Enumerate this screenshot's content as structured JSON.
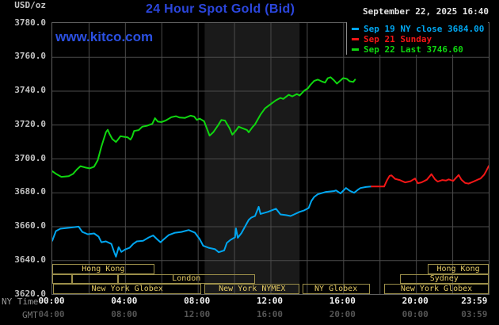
{
  "header": {
    "unit": "USD/oz",
    "title": "24 Hour Spot Gold (Bid)",
    "datetime": "September 22, 2025 16:40",
    "watermark": "www.kitco.com"
  },
  "colors": {
    "title_blue": "#2b46dd",
    "watermark_blue": "#2b50e2",
    "grid": "#4b4b4b",
    "frame": "#5f5f5f",
    "band": "#1a1a1a",
    "session_border": "#9c8f4a",
    "session_text": "#e3c963",
    "cyan_series": "#00a6f0",
    "red_series": "#f31616",
    "green_series": "#0fd60f"
  },
  "legend": {
    "entries": [
      {
        "label": "Sep 19 NY close 3684.00",
        "color": "#00a6f0"
      },
      {
        "label": "Sep 21 Sunday",
        "color": "#f31616"
      },
      {
        "label": "Sep 22 Last 3746.60",
        "color": "#0fd60f"
      }
    ]
  },
  "y_axis": {
    "labels": [
      "3780.0",
      "3760.0",
      "3740.0",
      "3720.0",
      "3700.0",
      "3680.0",
      "3660.0",
      "3640.0",
      "3620.0"
    ]
  },
  "x_axis": {
    "row1_label": "NY Time",
    "row2_label": "GMT",
    "row1_ticks": [
      {
        "h": 0,
        "t": "00:00"
      },
      {
        "h": 4,
        "t": "04:00"
      },
      {
        "h": 8,
        "t": "08:00"
      },
      {
        "h": 12,
        "t": "12:00"
      },
      {
        "h": 16,
        "t": "16:00"
      },
      {
        "h": 20,
        "t": "20:00"
      },
      {
        "h": 23.25,
        "t": "23:59"
      }
    ],
    "row2_ticks": [
      {
        "h": 0,
        "t": "04:00"
      },
      {
        "h": 4,
        "t": "08:00"
      },
      {
        "h": 8,
        "t": "12:00"
      },
      {
        "h": 12,
        "t": "16:00"
      },
      {
        "h": 16,
        "t": "20:00"
      },
      {
        "h": 20,
        "t": "00:00"
      },
      {
        "h": 23.25,
        "t": "03:59"
      }
    ]
  },
  "sessions": {
    "rows": [
      {
        "boxes": [
          {
            "start": 0,
            "end": 5.6,
            "label": "Hong Kong"
          },
          {
            "start": 20.65,
            "end": 24,
            "label": "Hong Kong"
          }
        ]
      },
      {
        "boxes": [
          {
            "start": 0,
            "end": 1.1,
            "label": ""
          },
          {
            "start": 1.1,
            "end": 3.6,
            "label": ""
          },
          {
            "start": 3.6,
            "end": 11.15,
            "label": "London"
          },
          {
            "start": 19.1,
            "end": 24,
            "label": "Sydney"
          }
        ]
      },
      {
        "boxes": [
          {
            "start": 0.05,
            "end": 8.2,
            "label": "New York Globex"
          },
          {
            "start": 8.38,
            "end": 13.6,
            "label": "New York NYMEX"
          },
          {
            "start": 13.75,
            "end": 17.45,
            "label": "NY Globex"
          },
          {
            "start": 18.25,
            "end": 24,
            "label": "New York Globex"
          }
        ]
      }
    ]
  },
  "chart_data": {
    "type": "line",
    "title": "24 Hour Spot Gold (Bid)",
    "x_unit": "NY time, hours",
    "x_range": [
      0,
      24
    ],
    "y_range": [
      3620,
      3780
    ],
    "y_step": 20,
    "x_gridline_step_hours": 2,
    "shaded_band_hours": {
      "start": 8.38,
      "end": 13.6
    },
    "series": [
      {
        "name": "Sep 19 NY close",
        "close_value": 3684.0,
        "color": "#00a6f0",
        "points": [
          [
            0,
            3651.5
          ],
          [
            0.2,
            3657.2
          ],
          [
            0.45,
            3658.6
          ],
          [
            0.9,
            3659.1
          ],
          [
            1.45,
            3659.8
          ],
          [
            1.65,
            3656.7
          ],
          [
            1.95,
            3655.3
          ],
          [
            2.3,
            3655.8
          ],
          [
            2.55,
            3653.9
          ],
          [
            2.7,
            3650.6
          ],
          [
            2.95,
            3651.1
          ],
          [
            3.25,
            3649.6
          ],
          [
            3.4,
            3644.9
          ],
          [
            3.5,
            3642.1
          ],
          [
            3.65,
            3647.7
          ],
          [
            3.8,
            3644.9
          ],
          [
            4,
            3646.3
          ],
          [
            4.25,
            3647.3
          ],
          [
            4.45,
            3649.6
          ],
          [
            4.65,
            3651.1
          ],
          [
            5,
            3651.5
          ],
          [
            5.3,
            3653.4
          ],
          [
            5.55,
            3654.6
          ],
          [
            5.75,
            3652.5
          ],
          [
            5.95,
            3650.6
          ],
          [
            6.15,
            3652.5
          ],
          [
            6.4,
            3654.8
          ],
          [
            6.75,
            3656.2
          ],
          [
            7.1,
            3656.7
          ],
          [
            7.5,
            3657.8
          ],
          [
            7.85,
            3656.2
          ],
          [
            8.1,
            3652.5
          ],
          [
            8.3,
            3648.5
          ],
          [
            8.6,
            3647.3
          ],
          [
            8.95,
            3646.5
          ],
          [
            9.15,
            3644.7
          ],
          [
            9.45,
            3645.8
          ],
          [
            9.6,
            3650.2
          ],
          [
            9.8,
            3652
          ],
          [
            10.05,
            3653.5
          ],
          [
            10.1,
            3658.8
          ],
          [
            10.2,
            3653.2
          ],
          [
            10.4,
            3656
          ],
          [
            10.8,
            3663.8
          ],
          [
            10.95,
            3665.2
          ],
          [
            11.15,
            3666.1
          ],
          [
            11.35,
            3671.5
          ],
          [
            11.45,
            3667.3
          ],
          [
            11.85,
            3668.5
          ],
          [
            12.3,
            3670.4
          ],
          [
            12.55,
            3667
          ],
          [
            12.85,
            3666.6
          ],
          [
            13.1,
            3666.1
          ],
          [
            13.3,
            3667
          ],
          [
            13.6,
            3668.5
          ],
          [
            13.85,
            3669.4
          ],
          [
            14.1,
            3670.8
          ],
          [
            14.25,
            3675
          ],
          [
            14.4,
            3677.3
          ],
          [
            14.6,
            3678.9
          ],
          [
            15.05,
            3680.3
          ],
          [
            15.5,
            3680.8
          ],
          [
            15.6,
            3681.2
          ],
          [
            15.85,
            3679.4
          ],
          [
            16.15,
            3682.6
          ],
          [
            16.35,
            3681
          ],
          [
            16.6,
            3679.8
          ],
          [
            16.8,
            3681.5
          ],
          [
            16.95,
            3682.6
          ],
          [
            17.25,
            3683.2
          ],
          [
            17.55,
            3683.5
          ]
        ]
      },
      {
        "name": "Sep 21 Sunday",
        "color": "#f31616",
        "points": [
          [
            17.55,
            3683.5
          ],
          [
            18.25,
            3683.5
          ],
          [
            18.4,
            3687
          ],
          [
            18.55,
            3689.8
          ],
          [
            18.65,
            3690.1
          ],
          [
            18.85,
            3688
          ],
          [
            19.1,
            3687.3
          ],
          [
            19.4,
            3685.9
          ],
          [
            19.7,
            3686.6
          ],
          [
            19.95,
            3688.2
          ],
          [
            20.1,
            3685.4
          ],
          [
            20.3,
            3685.9
          ],
          [
            20.6,
            3687.5
          ],
          [
            20.85,
            3690.8
          ],
          [
            21.05,
            3687.7
          ],
          [
            21.2,
            3686.4
          ],
          [
            21.45,
            3687.3
          ],
          [
            21.65,
            3687
          ],
          [
            21.8,
            3687.7
          ],
          [
            22.05,
            3686.8
          ],
          [
            22.35,
            3690.3
          ],
          [
            22.5,
            3687.5
          ],
          [
            22.7,
            3685.6
          ],
          [
            22.9,
            3685.2
          ],
          [
            23.1,
            3686.1
          ],
          [
            23.35,
            3687.3
          ],
          [
            23.55,
            3688.2
          ],
          [
            23.75,
            3690.5
          ],
          [
            23.85,
            3692.4
          ],
          [
            24,
            3695.6
          ]
        ]
      },
      {
        "name": "Sep 22 Last",
        "last_value": 3746.6,
        "color": "#0fd60f",
        "points": [
          [
            0,
            3692.5
          ],
          [
            0.2,
            3691
          ],
          [
            0.5,
            3689.2
          ],
          [
            0.9,
            3689.6
          ],
          [
            1.15,
            3691
          ],
          [
            1.35,
            3693.5
          ],
          [
            1.55,
            3695.5
          ],
          [
            1.85,
            3694.6
          ],
          [
            2.05,
            3694.2
          ],
          [
            2.3,
            3695.2
          ],
          [
            2.5,
            3699
          ],
          [
            2.7,
            3707
          ],
          [
            2.95,
            3715.5
          ],
          [
            3.05,
            3717
          ],
          [
            3.15,
            3714.5
          ],
          [
            3.3,
            3711.5
          ],
          [
            3.5,
            3709.8
          ],
          [
            3.6,
            3711
          ],
          [
            3.75,
            3713.2
          ],
          [
            3.95,
            3712.8
          ],
          [
            4.15,
            3712.5
          ],
          [
            4.3,
            3711.2
          ],
          [
            4.4,
            3713
          ],
          [
            4.5,
            3716.3
          ],
          [
            4.75,
            3716.8
          ],
          [
            4.95,
            3718.8
          ],
          [
            5.2,
            3719.3
          ],
          [
            5.5,
            3720.5
          ],
          [
            5.65,
            3723.8
          ],
          [
            5.8,
            3721.8
          ],
          [
            6,
            3721.5
          ],
          [
            6.25,
            3722.5
          ],
          [
            6.55,
            3724.4
          ],
          [
            6.8,
            3725
          ],
          [
            7,
            3724.2
          ],
          [
            7.3,
            3724
          ],
          [
            7.6,
            3725.3
          ],
          [
            7.8,
            3724.8
          ],
          [
            7.95,
            3722.8
          ],
          [
            8.1,
            3723.6
          ],
          [
            8.35,
            3722
          ],
          [
            8.65,
            3713.5
          ],
          [
            8.85,
            3715.5
          ],
          [
            9.1,
            3719.3
          ],
          [
            9.3,
            3722.8
          ],
          [
            9.5,
            3722.4
          ],
          [
            9.75,
            3717.9
          ],
          [
            9.9,
            3714.1
          ],
          [
            10.1,
            3716.5
          ],
          [
            10.25,
            3718.8
          ],
          [
            10.45,
            3717.9
          ],
          [
            10.7,
            3716.9
          ],
          [
            10.8,
            3715.5
          ],
          [
            11,
            3718.4
          ],
          [
            11.15,
            3720.2
          ],
          [
            11.45,
            3725.9
          ],
          [
            11.7,
            3729.6
          ],
          [
            12,
            3732
          ],
          [
            12.3,
            3734.4
          ],
          [
            12.55,
            3735.8
          ],
          [
            12.7,
            3735.2
          ],
          [
            13,
            3737.6
          ],
          [
            13.2,
            3736.7
          ],
          [
            13.45,
            3738.1
          ],
          [
            13.6,
            3737.2
          ],
          [
            13.85,
            3740
          ],
          [
            14.05,
            3741.4
          ],
          [
            14.2,
            3743.5
          ],
          [
            14.4,
            3745.8
          ],
          [
            14.6,
            3746.6
          ],
          [
            14.85,
            3745.4
          ],
          [
            15,
            3744.8
          ],
          [
            15.15,
            3747.4
          ],
          [
            15.3,
            3748
          ],
          [
            15.5,
            3746.1
          ],
          [
            15.65,
            3744.2
          ],
          [
            15.85,
            3746.1
          ],
          [
            16,
            3747.5
          ],
          [
            16.2,
            3747
          ],
          [
            16.35,
            3745.6
          ],
          [
            16.55,
            3745.2
          ],
          [
            16.65,
            3746.6
          ]
        ]
      }
    ]
  }
}
